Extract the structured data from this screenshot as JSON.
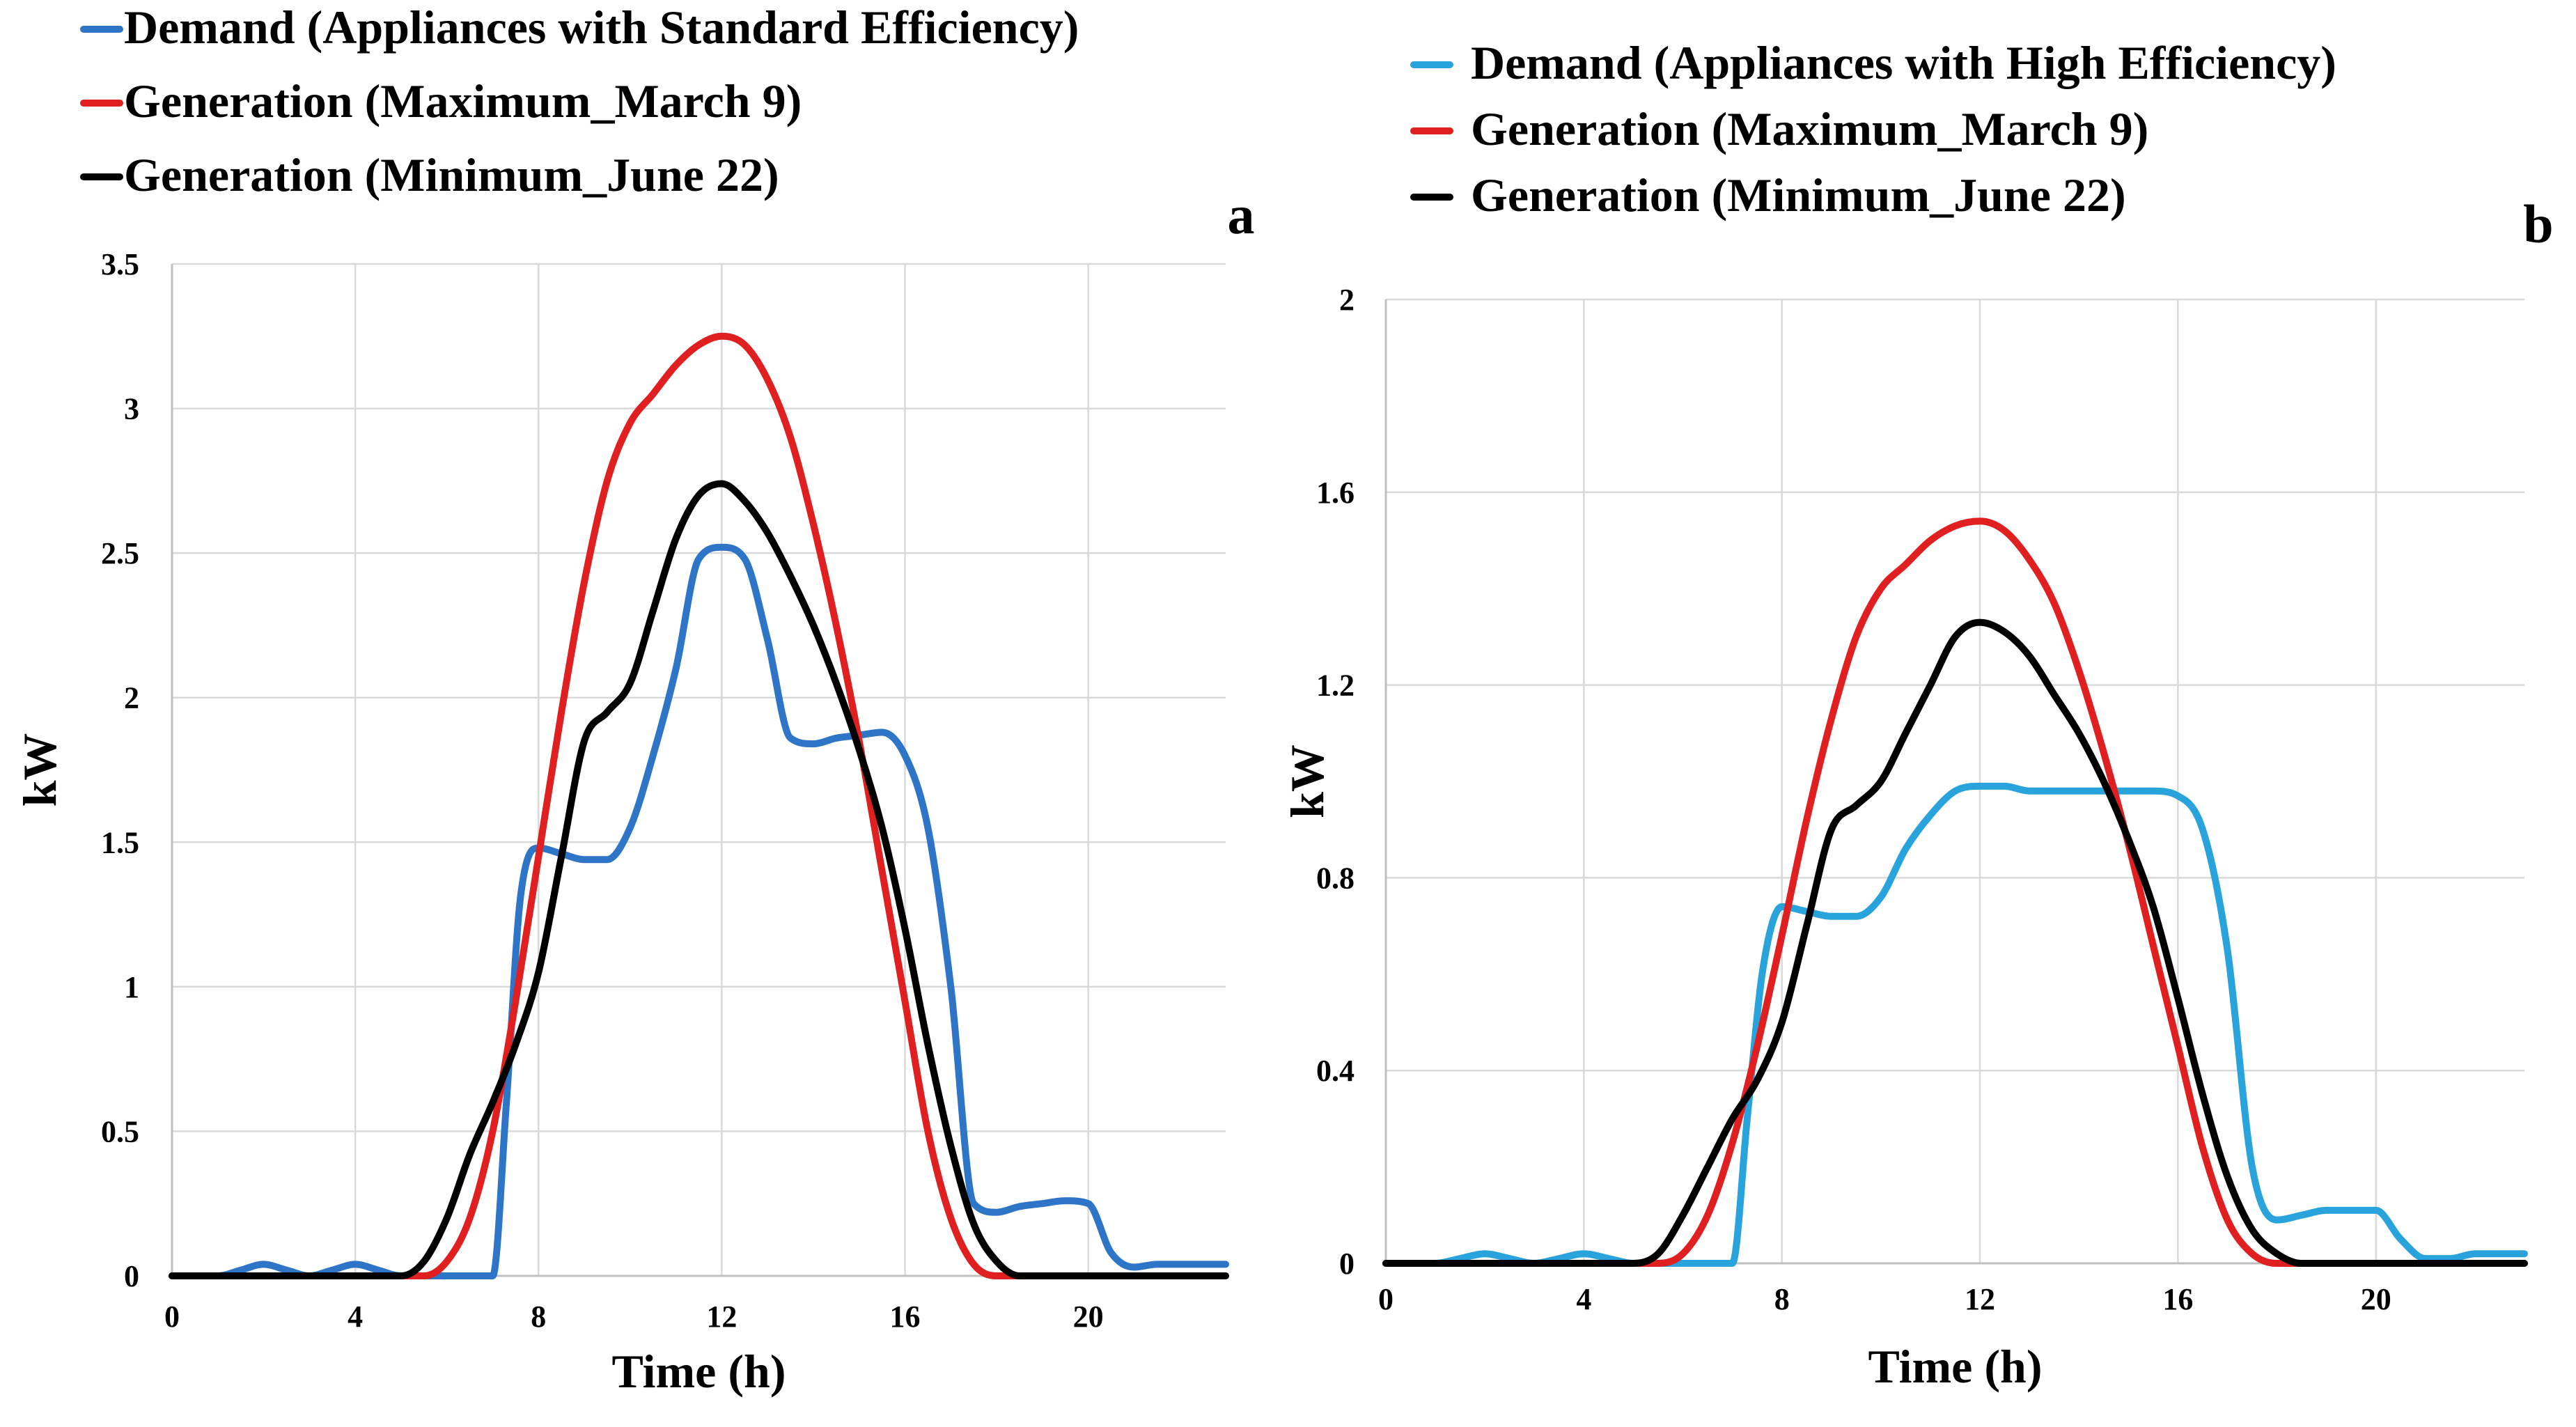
{
  "chart_data": [
    {
      "type": "line",
      "panel_label": "a",
      "xlabel": "Time (h)",
      "ylabel": "kW",
      "xlim": [
        0,
        23
      ],
      "ylim": [
        0,
        3.5
      ],
      "xticks": [
        0,
        4,
        8,
        12,
        16,
        20
      ],
      "yticks": [
        0,
        0.5,
        1,
        1.5,
        2,
        2.5,
        3,
        3.5
      ],
      "ytick_labels": [
        "0",
        "0.5",
        "1",
        "1.5",
        "2",
        "2.5",
        "3",
        "3.5"
      ],
      "legend_position": "top-left",
      "series": [
        {
          "name": "Demand (Appliances with Standard Efficiency)",
          "color": "#2e75c8",
          "x": [
            0,
            0.5,
            1,
            1.5,
            2,
            2.5,
            3,
            3.5,
            4,
            4.5,
            5,
            5.5,
            6,
            6.5,
            7,
            7.3,
            7.6,
            8,
            8.5,
            9,
            9.5,
            10,
            10.5,
            11,
            11.5,
            12,
            12.5,
            13,
            13.5,
            14,
            14.5,
            15,
            15.5,
            16,
            16.5,
            17,
            17.5,
            18,
            18.5,
            19,
            19.5,
            20,
            20.5,
            21,
            21.5,
            22,
            22.5,
            23
          ],
          "values": [
            0,
            0,
            0,
            0.02,
            0.04,
            0.02,
            0,
            0.02,
            0.04,
            0.02,
            0,
            0,
            0,
            0,
            0,
            0.6,
            1.3,
            1.48,
            1.46,
            1.44,
            1.44,
            1.55,
            1.8,
            2.1,
            2.48,
            2.52,
            2.48,
            2.2,
            1.86,
            1.84,
            1.86,
            1.87,
            1.88,
            1.8,
            1.55,
            1.0,
            0.25,
            0.22,
            0.24,
            0.25,
            0.26,
            0.25,
            0.08,
            0.03,
            0.04,
            0.04,
            0.04,
            0.04
          ]
        },
        {
          "name": "Generation (Maximum_March 9)",
          "color": "#e02020",
          "x": [
            0,
            1,
            2,
            3,
            4,
            5,
            5.5,
            6,
            6.5,
            7,
            7.5,
            8,
            8.5,
            9,
            9.5,
            10,
            10.5,
            11,
            11.5,
            12,
            12.5,
            13,
            13.5,
            14,
            14.5,
            15,
            15.5,
            16,
            16.5,
            17,
            17.5,
            18,
            18.5,
            19,
            19.5,
            20,
            21,
            22,
            23
          ],
          "values": [
            0,
            0,
            0,
            0,
            0,
            0,
            0,
            0.05,
            0.2,
            0.5,
            0.95,
            1.45,
            1.95,
            2.4,
            2.75,
            2.95,
            3.05,
            3.15,
            3.22,
            3.25,
            3.22,
            3.1,
            2.9,
            2.6,
            2.25,
            1.85,
            1.4,
            0.95,
            0.5,
            0.2,
            0.04,
            0,
            0,
            0,
            0,
            0,
            0,
            0,
            0
          ]
        },
        {
          "name": "Generation (Minimum_June 22)",
          "color": "#000000",
          "x": [
            0,
            1,
            2,
            3,
            4,
            5,
            5.5,
            6,
            6.5,
            7,
            7.5,
            8,
            8.5,
            9,
            9.5,
            10,
            10.5,
            11,
            11.5,
            12,
            12.5,
            13,
            13.5,
            14,
            14.5,
            15,
            15.5,
            16,
            16.5,
            17,
            17.5,
            18,
            18.5,
            19,
            19.5,
            20,
            21,
            22,
            23
          ],
          "values": [
            0,
            0,
            0,
            0,
            0,
            0,
            0.05,
            0.2,
            0.42,
            0.6,
            0.8,
            1.05,
            1.45,
            1.85,
            1.95,
            2.05,
            2.3,
            2.55,
            2.7,
            2.74,
            2.68,
            2.57,
            2.42,
            2.25,
            2.05,
            1.82,
            1.55,
            1.2,
            0.8,
            0.45,
            0.18,
            0.05,
            0,
            0,
            0,
            0,
            0,
            0,
            0
          ]
        }
      ]
    },
    {
      "type": "line",
      "panel_label": "b",
      "xlabel": "Time (h)",
      "ylabel": "kW",
      "xlim": [
        0,
        23
      ],
      "ylim": [
        0,
        2
      ],
      "xticks": [
        0,
        4,
        8,
        12,
        16,
        20
      ],
      "yticks": [
        0,
        0.4,
        0.8,
        1.2,
        1.6,
        2
      ],
      "ytick_labels": [
        "0",
        "0.4",
        "0.8",
        "1.2",
        "1.6",
        "2"
      ],
      "legend_position": "top-left",
      "series": [
        {
          "name": "Demand (Appliances with High Efficiency)",
          "color": "#29a3dc",
          "x": [
            0,
            0.5,
            1,
            1.5,
            2,
            2.5,
            3,
            3.5,
            4,
            4.5,
            5,
            5.5,
            6,
            6.5,
            7,
            7.3,
            7.6,
            8,
            8.5,
            9,
            9.5,
            10,
            10.5,
            11,
            11.5,
            12,
            12.5,
            13,
            13.5,
            14,
            14.5,
            15,
            15.5,
            16,
            16.5,
            17,
            17.5,
            18,
            18.5,
            19,
            19.5,
            20,
            20.5,
            21,
            21.5,
            22,
            22.5,
            23
          ],
          "values": [
            0,
            0,
            0,
            0.01,
            0.02,
            0.01,
            0,
            0.01,
            0.02,
            0.01,
            0,
            0,
            0,
            0,
            0,
            0.3,
            0.6,
            0.74,
            0.73,
            0.72,
            0.72,
            0.76,
            0.86,
            0.93,
            0.98,
            0.99,
            0.99,
            0.98,
            0.98,
            0.98,
            0.98,
            0.98,
            0.98,
            0.97,
            0.9,
            0.65,
            0.2,
            0.09,
            0.1,
            0.11,
            0.11,
            0.11,
            0.05,
            0.01,
            0.01,
            0.02,
            0.02,
            0.02
          ]
        },
        {
          "name": "Generation (Maximum_March 9)",
          "color": "#e02020",
          "x": [
            0,
            1,
            2,
            3,
            4,
            5,
            5.5,
            6,
            6.5,
            7,
            7.5,
            8,
            8.5,
            9,
            9.5,
            10,
            10.5,
            11,
            11.5,
            12,
            12.5,
            13,
            13.5,
            14,
            14.5,
            15,
            15.5,
            16,
            16.5,
            17,
            17.5,
            18,
            18.5,
            19,
            19.5,
            20,
            21,
            22,
            23
          ],
          "values": [
            0,
            0,
            0,
            0,
            0,
            0,
            0,
            0.02,
            0.1,
            0.25,
            0.45,
            0.68,
            0.92,
            1.13,
            1.3,
            1.4,
            1.45,
            1.5,
            1.53,
            1.54,
            1.52,
            1.46,
            1.37,
            1.23,
            1.06,
            0.87,
            0.66,
            0.45,
            0.24,
            0.09,
            0.02,
            0,
            0,
            0,
            0,
            0,
            0,
            0,
            0
          ]
        },
        {
          "name": "Generation (Minimum_June 22)",
          "color": "#000000",
          "x": [
            0,
            1,
            2,
            3,
            4,
            5,
            5.5,
            6,
            6.5,
            7,
            7.5,
            8,
            8.5,
            9,
            9.5,
            10,
            10.5,
            11,
            11.5,
            12,
            12.5,
            13,
            13.5,
            14,
            14.5,
            15,
            15.5,
            16,
            16.5,
            17,
            17.5,
            18,
            18.5,
            19,
            19.5,
            20,
            21,
            22,
            23
          ],
          "values": [
            0,
            0,
            0,
            0,
            0,
            0,
            0.02,
            0.1,
            0.2,
            0.3,
            0.38,
            0.5,
            0.7,
            0.9,
            0.95,
            1.0,
            1.1,
            1.2,
            1.3,
            1.33,
            1.31,
            1.26,
            1.18,
            1.1,
            1.0,
            0.88,
            0.74,
            0.55,
            0.35,
            0.18,
            0.07,
            0.02,
            0,
            0,
            0,
            0,
            0,
            0,
            0
          ]
        }
      ]
    }
  ]
}
